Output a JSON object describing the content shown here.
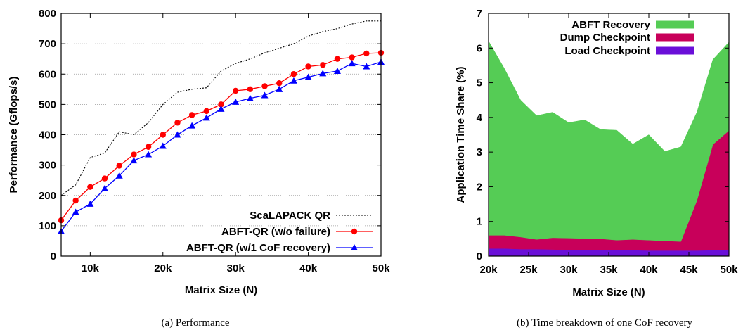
{
  "chart_data": [
    {
      "type": "line",
      "xlabel": "Matrix Size (N)",
      "ylabel": "Performance (Gflops/s)",
      "caption": "(a)  Performance",
      "xlim": [
        6000,
        50000
      ],
      "ylim": [
        0,
        800
      ],
      "xticks": [
        {
          "value": 10000,
          "label": "10k"
        },
        {
          "value": 20000,
          "label": "20k"
        },
        {
          "value": 30000,
          "label": "30k"
        },
        {
          "value": 40000,
          "label": "40k"
        },
        {
          "value": 50000,
          "label": "50k"
        }
      ],
      "yticks": [
        {
          "value": 0,
          "label": "0"
        },
        {
          "value": 100,
          "label": "100"
        },
        {
          "value": 200,
          "label": "200"
        },
        {
          "value": 300,
          "label": "300"
        },
        {
          "value": 400,
          "label": "400"
        },
        {
          "value": 500,
          "label": "500"
        },
        {
          "value": 600,
          "label": "600"
        },
        {
          "value": 700,
          "label": "700"
        },
        {
          "value": 800,
          "label": "800"
        }
      ],
      "grid": "horizontal dotted",
      "legend_position": "bottom-right",
      "x": [
        6000,
        8000,
        10000,
        12000,
        14000,
        16000,
        18000,
        20000,
        22000,
        24000,
        26000,
        28000,
        30000,
        32000,
        34000,
        36000,
        38000,
        40000,
        42000,
        44000,
        46000,
        48000,
        50000
      ],
      "series": [
        {
          "name": "ScaLAPACK QR",
          "color": "#000000",
          "style": "dotted",
          "marker": "none",
          "values": [
            200,
            235,
            325,
            340,
            410,
            400,
            440,
            500,
            540,
            550,
            555,
            610,
            635,
            650,
            670,
            685,
            700,
            725,
            740,
            750,
            765,
            775,
            775
          ]
        },
        {
          "name": "ABFT-QR (w/o failure)",
          "color": "#ff0000",
          "style": "solid",
          "marker": "circle",
          "values": [
            118,
            183,
            228,
            256,
            298,
            335,
            360,
            400,
            440,
            465,
            478,
            500,
            545,
            550,
            560,
            570,
            600,
            625,
            630,
            650,
            655,
            668,
            670
          ]
        },
        {
          "name": "ABFT-QR (w/1 CoF recovery)",
          "color": "#0000ff",
          "style": "solid",
          "marker": "triangle",
          "values": [
            82,
            145,
            172,
            223,
            265,
            315,
            335,
            363,
            400,
            430,
            456,
            485,
            508,
            520,
            530,
            550,
            578,
            590,
            602,
            610,
            635,
            625,
            640
          ]
        }
      ]
    },
    {
      "type": "area",
      "stacked": true,
      "xlabel": "Matrix Size (N)",
      "ylabel": "Application Time Share (%)",
      "caption": "(b)  Time breakdown of one CoF recovery",
      "xlim": [
        20000,
        50000
      ],
      "ylim": [
        0,
        7
      ],
      "xticks": [
        {
          "value": 20000,
          "label": "20k"
        },
        {
          "value": 25000,
          "label": "25k"
        },
        {
          "value": 30000,
          "label": "30k"
        },
        {
          "value": 35000,
          "label": "35k"
        },
        {
          "value": 40000,
          "label": "40k"
        },
        {
          "value": 45000,
          "label": "45k"
        },
        {
          "value": 50000,
          "label": "50k"
        }
      ],
      "yticks": [
        {
          "value": 0,
          "label": "0"
        },
        {
          "value": 1,
          "label": "1"
        },
        {
          "value": 2,
          "label": "2"
        },
        {
          "value": 3,
          "label": "3"
        },
        {
          "value": 4,
          "label": "4"
        },
        {
          "value": 5,
          "label": "5"
        },
        {
          "value": 6,
          "label": "6"
        },
        {
          "value": 7,
          "label": "7"
        }
      ],
      "legend_position": "top-right",
      "x": [
        20000,
        22000,
        24000,
        26000,
        28000,
        30000,
        32000,
        34000,
        36000,
        38000,
        40000,
        42000,
        44000,
        46000,
        48000,
        50000
      ],
      "series": [
        {
          "name": "Load Checkpoint",
          "color": "#6a0fd8",
          "values": [
            0.22,
            0.22,
            0.2,
            0.2,
            0.19,
            0.18,
            0.18,
            0.17,
            0.17,
            0.17,
            0.16,
            0.16,
            0.16,
            0.16,
            0.17,
            0.17
          ]
        },
        {
          "name": "Dump Checkpoint",
          "color": "#c8005a",
          "values": [
            0.38,
            0.38,
            0.35,
            0.28,
            0.34,
            0.34,
            0.33,
            0.33,
            0.29,
            0.31,
            0.3,
            0.28,
            0.26,
            1.44,
            3.05,
            3.45
          ]
        },
        {
          "name": "ABFT Recovery",
          "color": "#55cc55",
          "values": [
            5.6,
            4.8,
            3.95,
            3.57,
            3.62,
            3.33,
            3.42,
            3.15,
            3.17,
            2.75,
            3.04,
            2.58,
            2.73,
            2.55,
            2.45,
            2.55
          ]
        }
      ]
    }
  ]
}
